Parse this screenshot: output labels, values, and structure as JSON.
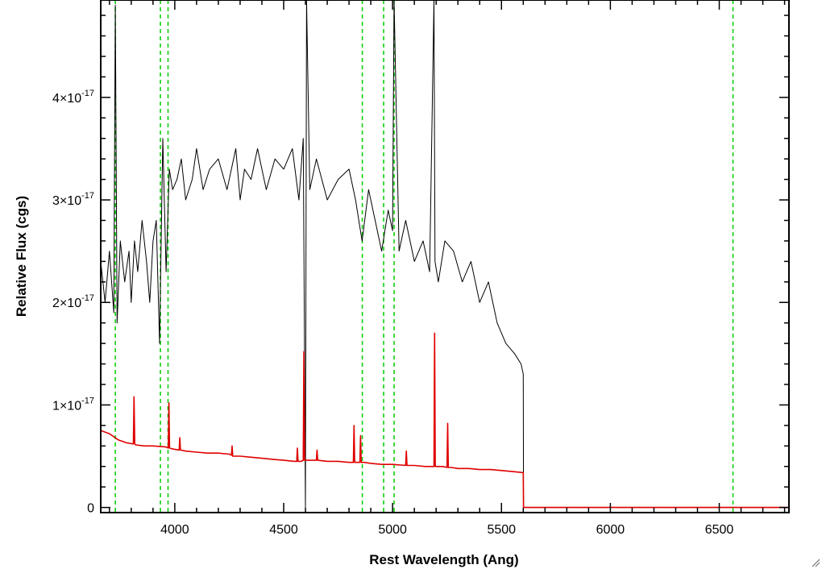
{
  "chart_data": {
    "type": "line",
    "title": "",
    "xlabel": "Rest Wavelength (Ang)",
    "ylabel": "Relative Flux (cgs)",
    "xlim": [
      3660,
      6820
    ],
    "ylim": [
      -5e-19,
      4.95e-17
    ],
    "x_ticks": [
      4000,
      4500,
      5000,
      5500,
      6000,
      6500
    ],
    "x_tick_labels": [
      "4000",
      "4500",
      "5000",
      "5500",
      "6000",
      "6500"
    ],
    "y_ticks": [
      0,
      1e-17,
      2e-17,
      3e-17,
      4e-17
    ],
    "y_tick_labels": [
      {
        "mantissa": "0",
        "exponent": ""
      },
      {
        "mantissa": "1×10",
        "exponent": "-17"
      },
      {
        "mantissa": "2×10",
        "exponent": "-17"
      },
      {
        "mantissa": "3×10",
        "exponent": "-17"
      },
      {
        "mantissa": "4×10",
        "exponent": "-17"
      }
    ],
    "reference_lines_x": [
      3727,
      3934,
      3969,
      4861,
      4959,
      5007,
      6563
    ],
    "series": [
      {
        "color": "#000000",
        "x": [
          3660,
          3680,
          3700,
          3720,
          3727,
          3735,
          3750,
          3770,
          3790,
          3800,
          3815,
          3830,
          3850,
          3870,
          3885,
          3900,
          3915,
          3930,
          3945,
          3960,
          3975,
          3990,
          4010,
          4030,
          4050,
          4080,
          4100,
          4130,
          4160,
          4200,
          4240,
          4280,
          4300,
          4320,
          4350,
          4380,
          4420,
          4460,
          4500,
          4540,
          4570,
          4590,
          4600,
          4605,
          4620,
          4650,
          4700,
          4750,
          4800,
          4830,
          4860,
          4890,
          4920,
          4950,
          4980,
          5000,
          5007,
          5030,
          5060,
          5100,
          5140,
          5170,
          5190,
          5195,
          5210,
          5240,
          5280,
          5320,
          5360,
          5400,
          5440,
          5480,
          5520,
          5560,
          5590,
          5600,
          5601,
          5700,
          5900,
          6200,
          6500,
          6820
        ],
        "y": [
          2.4e-17,
          2e-17,
          2.5e-17,
          1.9e-17,
          4.9e-17,
          1.8e-17,
          2.6e-17,
          2.2e-17,
          2.5e-17,
          2e-17,
          2.6e-17,
          2.3e-17,
          2.8e-17,
          2.4e-17,
          2e-17,
          2.6e-17,
          2.8e-17,
          1.6e-17,
          3.6e-17,
          2.3e-17,
          3.3e-17,
          3.1e-17,
          3.2e-17,
          3.4e-17,
          3e-17,
          3.2e-17,
          3.5e-17,
          3.1e-17,
          3.3e-17,
          3.4e-17,
          3.1e-17,
          3.5e-17,
          3e-17,
          3.3e-17,
          3.2e-17,
          3.5e-17,
          3.1e-17,
          3.4e-17,
          3.3e-17,
          3.5e-17,
          3e-17,
          3.6e-17,
          0.0,
          5e-17,
          3.1e-17,
          3.4e-17,
          3e-17,
          3.2e-17,
          3.3e-17,
          3e-17,
          2.6e-17,
          3.1e-17,
          2.8e-17,
          2.5e-17,
          2.9e-17,
          2.7e-17,
          5e-17,
          2.5e-17,
          2.8e-17,
          2.4e-17,
          2.6e-17,
          2.3e-17,
          5e-17,
          2.4e-17,
          2.2e-17,
          2.6e-17,
          2.5e-17,
          2.2e-17,
          2.4e-17,
          2e-17,
          2.2e-17,
          1.8e-17,
          1.6e-17,
          1.5e-17,
          1.4e-17,
          1.3e-17,
          0.0,
          0.0,
          0.0,
          0.0,
          0.0,
          0.0
        ]
      },
      {
        "color": "#e00000",
        "x": [
          3660,
          3700,
          3740,
          3780,
          3810,
          3813,
          3816,
          3820,
          3860,
          3900,
          3960,
          3970,
          3973,
          3976,
          3990,
          4020,
          4023,
          4026,
          4050,
          4100,
          4150,
          4200,
          4250,
          4260,
          4263,
          4266,
          4280,
          4300,
          4350,
          4400,
          4450,
          4500,
          4550,
          4560,
          4563,
          4566,
          4580,
          4590,
          4593,
          4596,
          4600,
          4620,
          4640,
          4650,
          4653,
          4656,
          4700,
          4750,
          4800,
          4820,
          4823,
          4826,
          4840,
          4850,
          4853,
          4856,
          4870,
          4900,
          4950,
          5000,
          5060,
          5063,
          5066,
          5100,
          5150,
          5180,
          5190,
          5193,
          5196,
          5200,
          5230,
          5250,
          5253,
          5256,
          5270,
          5300,
          5350,
          5400,
          5450,
          5500,
          5550,
          5600,
          5601,
          5700,
          5900,
          6200,
          6500,
          6820
        ],
        "y": [
          7.5e-18,
          7.2e-18,
          6.6e-18,
          6.3e-18,
          6.2e-18,
          1.08e-17,
          6.2e-18,
          6.1e-18,
          6e-18,
          6e-18,
          5.9e-18,
          5.8e-18,
          1.02e-17,
          5.8e-18,
          5.7e-18,
          5.6e-18,
          6.8e-18,
          5.6e-18,
          5.5e-18,
          5.4e-18,
          5.3e-18,
          5.3e-18,
          5.2e-18,
          5.1e-18,
          6e-18,
          5e-18,
          5e-18,
          5e-18,
          4.9e-18,
          4.8e-18,
          4.7e-18,
          4.6e-18,
          4.5e-18,
          4.5e-18,
          5.8e-18,
          4.5e-18,
          4.5e-18,
          4.6e-18,
          1.52e-17,
          4.6e-18,
          4.6e-18,
          4.6e-18,
          4.6e-18,
          4.6e-18,
          5.6e-18,
          4.6e-18,
          4.5e-18,
          4.5e-18,
          4.4e-18,
          4.4e-18,
          8e-18,
          4.4e-18,
          4.4e-18,
          4.4e-18,
          7e-18,
          4.4e-18,
          4.4e-18,
          4.3e-18,
          4.2e-18,
          4.2e-18,
          4.1e-18,
          5.5e-18,
          4.1e-18,
          4.1e-18,
          4e-18,
          4e-18,
          4e-18,
          1.7e-17,
          4e-18,
          4e-18,
          4e-18,
          3.9e-18,
          8.2e-18,
          3.9e-18,
          3.9e-18,
          3.8e-18,
          3.8e-18,
          3.7e-18,
          3.7e-18,
          3.6e-18,
          3.5e-18,
          3.4e-18,
          0.0,
          0.0,
          0.0,
          0.0,
          0.0,
          0.0
        ]
      }
    ],
    "grid": false,
    "legend": "none"
  },
  "colors": {
    "reference_line": "#00cc00",
    "axis": "#000000",
    "background": "#ffffff"
  },
  "window": {
    "resize_grip": "resize-grip-icon"
  }
}
